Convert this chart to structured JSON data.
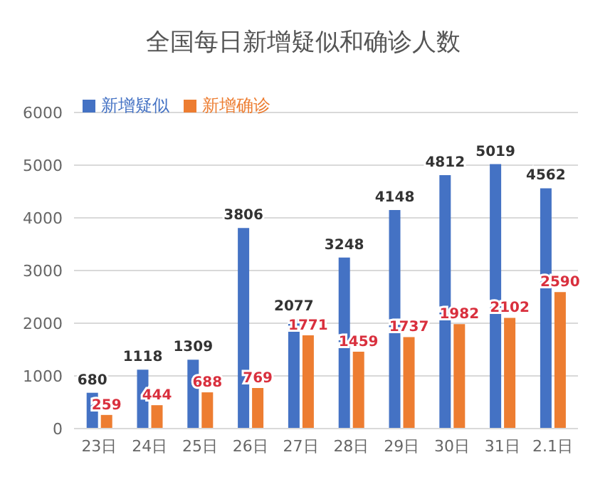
{
  "chart_data": {
    "type": "bar",
    "title": "全国每日新增疑似和确诊人数",
    "categories": [
      "23日",
      "24日",
      "25日",
      "26日",
      "27日",
      "28日",
      "29日",
      "30日",
      "31日",
      "2.1日"
    ],
    "series": [
      {
        "name": "新增疑似",
        "color": "#4472c4",
        "values": [
          680,
          1118,
          1309,
          3806,
          2077,
          3248,
          4148,
          4812,
          5019,
          4562
        ]
      },
      {
        "name": "新增确诊",
        "color": "#ed7d31",
        "values": [
          259,
          444,
          688,
          769,
          1771,
          1459,
          1737,
          1982,
          2102,
          2590
        ]
      }
    ],
    "ylim": [
      0,
      6000
    ],
    "yticks": [
      0,
      1000,
      2000,
      3000,
      4000,
      5000,
      6000
    ],
    "grid": "y",
    "legend": "top left",
    "data_labels": true
  }
}
